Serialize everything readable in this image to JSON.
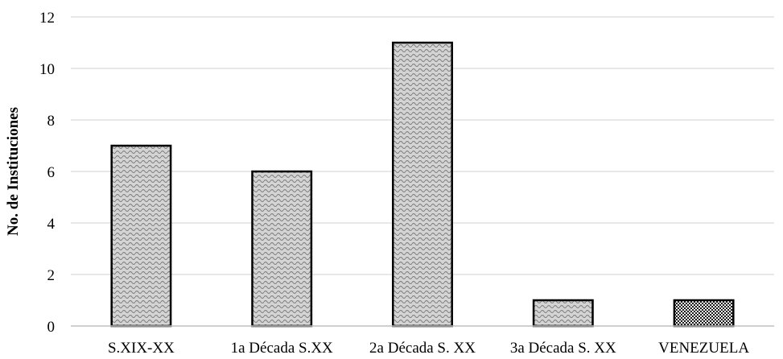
{
  "chart_data": {
    "type": "bar",
    "title": "",
    "xlabel": "",
    "ylabel": "No. de Instituciones",
    "categories": [
      "S.XIX-XX",
      "1a Década S.XX",
      "2a Década S. XX",
      "3a Década S. XX",
      "VENEZUELA"
    ],
    "values": [
      7,
      6,
      11,
      1,
      1
    ],
    "ylim": [
      0,
      12
    ],
    "yticks": [
      0,
      2,
      4,
      6,
      8,
      10,
      12
    ],
    "grid": true,
    "legend": "none",
    "colors": {
      "bar_fill": "#bdbdbd",
      "bar_fill_dark": "#8c8c8c",
      "bar_stroke": "#000000",
      "gridline": "#d9d9d9",
      "axis": "#bfbfbf"
    }
  }
}
